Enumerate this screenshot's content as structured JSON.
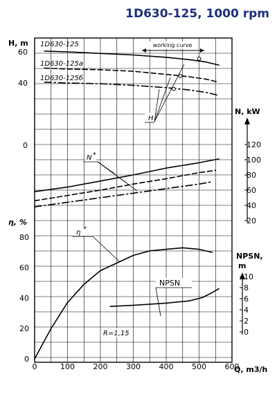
{
  "title": "1D630-125, 1000 rpm",
  "chart_data": {
    "type": "line",
    "x_label": "Q, m3/h",
    "x_ticks": [
      "0",
      "100",
      "200",
      "300",
      "400",
      "500",
      "600"
    ],
    "x_range": [
      0,
      600
    ],
    "grid": true,
    "head": {
      "axis_label": "H, m",
      "ticks": [
        "60",
        "40",
        "0"
      ],
      "series": [
        {
          "name": "1D630-125",
          "style": "solid",
          "x": [
            30,
            100,
            200,
            300,
            400,
            470,
            520,
            560
          ],
          "y": [
            60.5,
            60,
            59,
            58,
            56.5,
            55,
            53.5,
            51.5
          ]
        },
        {
          "name": "1D630-125a",
          "style": "dashed",
          "x": [
            30,
            100,
            200,
            300,
            400,
            470,
            520,
            560
          ],
          "y": [
            49.5,
            49,
            48.5,
            47.5,
            45.5,
            44,
            42.5,
            40.5
          ]
        },
        {
          "name": "1D630-125б",
          "style": "dashdot",
          "x": [
            30,
            100,
            200,
            300,
            400,
            470,
            520,
            560
          ],
          "y": [
            40.5,
            40,
            39.5,
            38.5,
            37,
            35.5,
            34,
            32
          ]
        }
      ],
      "curve_label": "H",
      "working_curve_label": "working curve"
    },
    "power": {
      "axis_label": "N, kW",
      "ticks": [
        "120",
        "100",
        "80",
        "60",
        "40",
        "20"
      ],
      "series": [
        {
          "style": "solid",
          "x": [
            0,
            100,
            200,
            300,
            400,
            500,
            560
          ],
          "y": [
            58,
            64,
            72,
            80,
            89,
            96,
            101
          ]
        },
        {
          "style": "dashed",
          "x": [
            0,
            100,
            200,
            300,
            400,
            500,
            550
          ],
          "y": [
            46,
            53,
            60,
            68,
            75,
            83,
            86
          ]
        },
        {
          "style": "dashdot",
          "x": [
            0,
            100,
            200,
            300,
            400,
            500,
            540
          ],
          "y": [
            38,
            44,
            50,
            56,
            62,
            68,
            71
          ]
        }
      ],
      "curve_label": "N"
    },
    "efficiency": {
      "axis_label": "η, %",
      "ticks": [
        "80",
        "60",
        "40",
        "20",
        "0"
      ],
      "series": [
        {
          "name": "η",
          "style": "solid",
          "x": [
            0,
            50,
            100,
            150,
            200,
            250,
            300,
            350,
            400,
            450,
            500,
            540
          ],
          "y": [
            0,
            20,
            37,
            49,
            58,
            63,
            68,
            71,
            72,
            73,
            72,
            70
          ]
        }
      ],
      "curve_label": "η"
    },
    "npsh": {
      "axis_label": "NPSN, m",
      "ticks": [
        "10",
        "8",
        "6",
        "4",
        "2",
        "0"
      ],
      "series": [
        {
          "name": "NPSN",
          "style": "solid",
          "x": [
            230,
            300,
            400,
            470,
            510,
            540,
            560
          ],
          "y": [
            4.6,
            4.8,
            5.2,
            5.6,
            6.2,
            7.1,
            7.8
          ]
        }
      ],
      "curve_label": "NPSN",
      "note": "R=1,15"
    }
  }
}
